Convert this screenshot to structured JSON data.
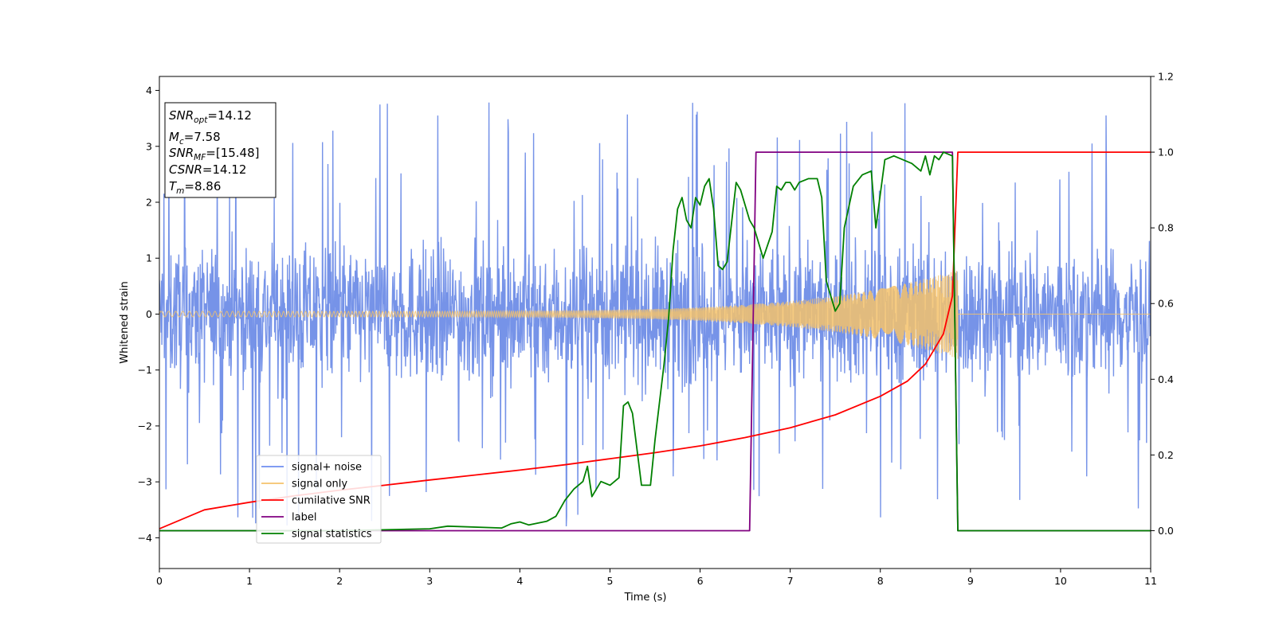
{
  "chart_data": {
    "type": "line",
    "xlabel": "Time (s)",
    "ylabel_left": "Whitened strain",
    "ylabel_right": "",
    "xlim": [
      0,
      11
    ],
    "ylim_left": [
      -4.55,
      4.25
    ],
    "ylim_right": [
      -0.1,
      1.2
    ],
    "x_ticks": [
      0,
      1,
      2,
      3,
      4,
      5,
      6,
      7,
      8,
      9,
      10,
      11
    ],
    "y_left_ticks": [
      -4,
      -3,
      -2,
      -1,
      0,
      1,
      2,
      3,
      4
    ],
    "y_right_ticks": [
      0.0,
      0.2,
      0.4,
      0.6,
      0.8,
      1.0,
      1.2
    ],
    "grid": false,
    "legend_position": "lower-left",
    "info_box": {
      "position": "top-left",
      "lines": [
        {
          "main": "SNR",
          "sub": "opt",
          "value": "=14.12"
        },
        {
          "main": "M",
          "sub": "c",
          "value": "=7.58"
        },
        {
          "main": "SNR",
          "sub": "MF",
          "value": "=[15.48]"
        },
        {
          "main": "CSNR",
          "sub": "",
          "value": "=14.12"
        },
        {
          "main": "T",
          "sub": "m",
          "value": "=8.86"
        }
      ]
    },
    "series": [
      {
        "name": "signal+ noise",
        "axis": "left",
        "color": "#7693e8",
        "description": "noise envelope, approx amplitude",
        "envelope": {
          "x_start": 0,
          "x_end": 11,
          "typical_amplitude": 1.9,
          "spike_max": 3.8,
          "spike_min": -4.2
        }
      },
      {
        "name": "signal only",
        "axis": "left",
        "color": "#f5c26b",
        "chirp": {
          "x_start": 0,
          "x_end": 8.86,
          "amp_start": 0.05,
          "amp_end": 0.8
        }
      },
      {
        "name": "cumilative SNR",
        "axis": "right",
        "color": "#ff0000",
        "x": [
          0.0,
          0.5,
          1.0,
          1.5,
          2.0,
          2.5,
          3.0,
          3.5,
          4.0,
          4.5,
          5.0,
          5.5,
          6.0,
          6.5,
          7.0,
          7.5,
          8.0,
          8.3,
          8.5,
          8.7,
          8.8,
          8.86,
          9.0,
          10.0,
          11.0
        ],
        "y": [
          0.005,
          0.055,
          0.075,
          0.092,
          0.107,
          0.12,
          0.134,
          0.147,
          0.16,
          0.174,
          0.19,
          0.206,
          0.224,
          0.246,
          0.272,
          0.306,
          0.355,
          0.395,
          0.44,
          0.52,
          0.62,
          1.0,
          1.0,
          1.0,
          1.0
        ]
      },
      {
        "name": "label",
        "axis": "right",
        "color": "#800080",
        "x": [
          0.0,
          6.55,
          6.62,
          8.8,
          8.86,
          11.0
        ],
        "y": [
          0.0,
          0.0,
          1.0,
          1.0,
          0.0,
          0.0
        ]
      },
      {
        "name": "signal statistics",
        "axis": "right",
        "color": "#008000",
        "x": [
          0.0,
          1.0,
          2.0,
          3.0,
          3.2,
          3.8,
          3.9,
          4.0,
          4.1,
          4.3,
          4.4,
          4.5,
          4.6,
          4.7,
          4.75,
          4.8,
          4.9,
          5.0,
          5.1,
          5.15,
          5.2,
          5.25,
          5.35,
          5.45,
          5.5,
          5.6,
          5.65,
          5.7,
          5.75,
          5.8,
          5.85,
          5.9,
          5.95,
          6.0,
          6.05,
          6.1,
          6.15,
          6.2,
          6.25,
          6.3,
          6.4,
          6.45,
          6.55,
          6.6,
          6.7,
          6.8,
          6.85,
          6.9,
          6.95,
          7.0,
          7.05,
          7.1,
          7.2,
          7.3,
          7.35,
          7.4,
          7.5,
          7.55,
          7.6,
          7.7,
          7.8,
          7.9,
          7.95,
          8.05,
          8.15,
          8.25,
          8.35,
          8.45,
          8.5,
          8.55,
          8.6,
          8.65,
          8.7,
          8.8,
          8.86,
          8.9,
          9.5,
          11.0
        ],
        "y": [
          0.0,
          0.0,
          0.0,
          0.005,
          0.012,
          0.007,
          0.018,
          0.023,
          0.015,
          0.025,
          0.038,
          0.08,
          0.11,
          0.13,
          0.17,
          0.09,
          0.13,
          0.12,
          0.14,
          0.33,
          0.34,
          0.31,
          0.12,
          0.12,
          0.24,
          0.44,
          0.56,
          0.74,
          0.85,
          0.88,
          0.82,
          0.8,
          0.88,
          0.86,
          0.91,
          0.93,
          0.85,
          0.7,
          0.69,
          0.71,
          0.92,
          0.9,
          0.82,
          0.8,
          0.72,
          0.79,
          0.91,
          0.9,
          0.92,
          0.92,
          0.9,
          0.92,
          0.93,
          0.93,
          0.88,
          0.66,
          0.58,
          0.6,
          0.8,
          0.91,
          0.94,
          0.95,
          0.8,
          0.98,
          0.99,
          0.98,
          0.97,
          0.95,
          0.99,
          0.94,
          0.99,
          0.98,
          1.0,
          0.99,
          0.0,
          0.0,
          0.0,
          0.0
        ]
      }
    ]
  }
}
